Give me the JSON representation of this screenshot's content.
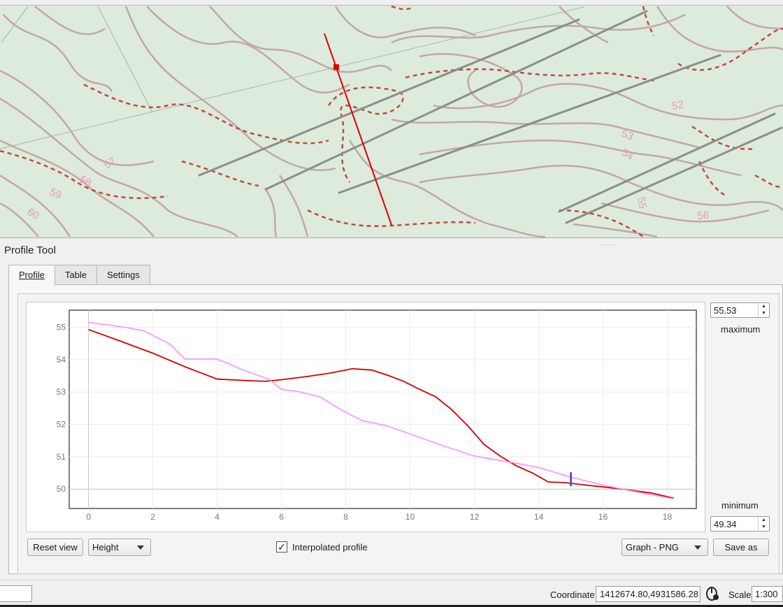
{
  "map": {
    "contour_labels": [
      "52",
      "53",
      "54",
      "55",
      "56",
      "57",
      "58",
      "59",
      "60"
    ],
    "colors": {
      "background": "#dcebdc",
      "contour": "#c4a5aa",
      "dashed": "#c8453f",
      "road": "#8a8f88",
      "profile_line": "#e00000"
    }
  },
  "panel": {
    "title": "Profile Tool"
  },
  "tabs": [
    {
      "label": "Profile",
      "active": true
    },
    {
      "label": "Table",
      "active": false
    },
    {
      "label": "Settings",
      "active": false
    }
  ],
  "axis": {
    "max_value": "55.53",
    "max_label": "maximum",
    "min_value": "49.34",
    "min_label": "minimum"
  },
  "controls": {
    "reset_view": "Reset view",
    "mode_select": "Height",
    "interpolated_checked": true,
    "interpolated_label": "Interpolated profile",
    "export_select": "Graph - PNG",
    "save_as": "Save as"
  },
  "status": {
    "coordinate_label": "Coordinate",
    "coordinate_value": "1412674.80,4931586.28",
    "scale_label": "Scale",
    "scale_value": "1:300"
  },
  "chart_data": {
    "type": "line",
    "title": "",
    "xlabel": "",
    "ylabel": "",
    "xlim": [
      -0.6,
      18.9
    ],
    "ylim": [
      49.4,
      55.53
    ],
    "xticks": [
      0,
      2,
      4,
      6,
      8,
      10,
      12,
      14,
      16,
      18
    ],
    "yticks": [
      50,
      51,
      52,
      53,
      54,
      55
    ],
    "grid": true,
    "series": [
      {
        "color": "#d40000",
        "x": [
          0,
          1,
          2,
          3,
          4,
          5,
          5.5,
          6,
          6.8,
          7.5,
          8.2,
          8.8,
          9.3,
          9.8,
          10.3,
          10.8,
          11.3,
          11.8,
          12.3,
          12.8,
          13.3,
          13.8,
          14.3,
          14.8,
          15.5,
          16.5,
          17.5,
          18.2
        ],
        "y": [
          54.93,
          54.57,
          54.2,
          53.78,
          53.4,
          53.35,
          53.33,
          53.38,
          53.48,
          53.58,
          53.72,
          53.68,
          53.52,
          53.33,
          53.08,
          52.85,
          52.45,
          51.95,
          51.38,
          51.02,
          50.72,
          50.5,
          50.22,
          50.2,
          50.12,
          50.01,
          49.88,
          49.72
        ]
      },
      {
        "color": "#ff88ff",
        "x": [
          0,
          1,
          1.7,
          2.5,
          3,
          4,
          4.3,
          4.8,
          5.6,
          6,
          6.5,
          7.2,
          7.8,
          8.5,
          9.3,
          10,
          11,
          12,
          13,
          14,
          15,
          16,
          17,
          18.2
        ],
        "y": [
          55.15,
          55.02,
          54.9,
          54.5,
          54.02,
          54.02,
          53.9,
          53.68,
          53.4,
          53.08,
          53.02,
          52.85,
          52.48,
          52.12,
          51.95,
          51.7,
          51.35,
          51.02,
          50.85,
          50.67,
          50.37,
          50.12,
          49.92,
          49.7
        ]
      }
    ],
    "cursor_x": 15.0
  }
}
